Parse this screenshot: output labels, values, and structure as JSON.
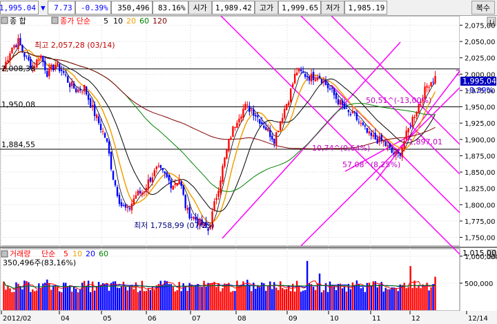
{
  "header": {
    "price": "1,995.04",
    "change_arrow": "▼",
    "change": "7.73",
    "change_pct": "-0.39%",
    "volume": "350,496",
    "volume_ratio": "83.16%",
    "open_label": "시가",
    "open_value": "1,989.42",
    "high_label": "고가",
    "high_value": "1,999.65",
    "low_label": "저가",
    "low_value": "1,985.19",
    "restore_button": "복수"
  },
  "price_panel": {
    "legend": {
      "name": "종    합",
      "type": "종가 단순",
      "ma1": "5",
      "ma2": "10",
      "ma3": "20",
      "ma4": "60",
      "ma5": "120"
    },
    "y_ticks": [
      "2,075,00",
      "2,050,00",
      "2,025,00",
      "2,000,00",
      "1,975,00",
      "1,950,00",
      "1,925,00",
      "1,900,00",
      "1,875,00",
      "1,850,00",
      "1,825,00",
      "1,800,00",
      "1,775,00",
      "1,750,00"
    ],
    "current_tag": "1,995,04",
    "current_pct_tag": "-0,39%",
    "level_labels": [
      "2,008,38",
      "1,950,08",
      "1,884,55"
    ],
    "annotations": {
      "high": "최고 2,057,28 (03/14)",
      "low": "최저 1,758,99 (07/25)",
      "a1": "50,51^(-13,00%)",
      "a2": "10,74^(0,64%)",
      "a3": "57,08^(8,25%)",
      "a4": "1,897,01",
      "num": "2"
    }
  },
  "volume_panel": {
    "legend": {
      "name": "거래량",
      "type": "단순",
      "ma1": "5",
      "ma2": "10",
      "ma3": "20",
      "ma4": "60"
    },
    "summary": "350,496주(83,16%)",
    "y_ticks": [
      "1,000,000",
      "500,000"
    ],
    "top_value": "1,015,000"
  },
  "x_axis": [
    "2012/02",
    "04",
    "05",
    "06",
    "07",
    "08",
    "09",
    "10",
    "11",
    "12",
    "12/14"
  ],
  "colors": {
    "up": "#ff0000",
    "down": "#0000ff",
    "ma5": "#000000",
    "ma10": "#f0a000",
    "ma20": "#000000",
    "ma60": "#008000",
    "ma120": "#800000",
    "trend": "#ff00ff"
  },
  "chart_data": {
    "type": "candlestick",
    "ylim": [
      1740,
      2085
    ],
    "x_labels": [
      "2012/02",
      "04",
      "05",
      "06",
      "07",
      "08",
      "09",
      "10",
      "11",
      "12",
      "12/14"
    ],
    "close_path": [
      2010,
      2040,
      2050,
      2025,
      2010,
      2030,
      2000,
      2015,
      2005,
      1985,
      1975,
      1980,
      1950,
      1925,
      1900,
      1840,
      1800,
      1790,
      1815,
      1820,
      1840,
      1855,
      1845,
      1830,
      1840,
      1790,
      1780,
      1770,
      1760,
      1810,
      1860,
      1905,
      1935,
      1950,
      1945,
      1930,
      1915,
      1900,
      1935,
      1965,
      2005,
      2000,
      1995,
      2000,
      1985,
      1970,
      1955,
      1940,
      1935,
      1920,
      1905,
      1900,
      1895,
      1880,
      1875,
      1905,
      1935,
      1960,
      1985,
      1995
    ],
    "volume_scale": [
      0,
      1100000
    ]
  }
}
